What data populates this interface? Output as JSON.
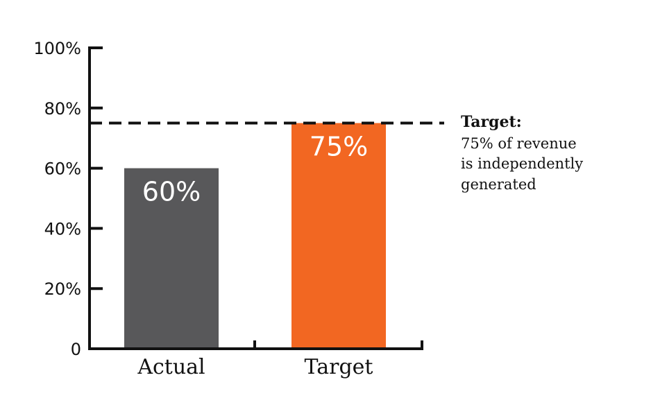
{
  "chart_data": {
    "type": "bar",
    "categories": [
      "Actual",
      "Target"
    ],
    "values": [
      60,
      75
    ],
    "value_labels": [
      "60%",
      "75%"
    ],
    "bar_colors": [
      "#58585a",
      "#f26722"
    ],
    "ylim": [
      0,
      100
    ],
    "y_ticks": [
      0,
      20,
      40,
      60,
      80,
      100
    ],
    "y_tick_labels": [
      "0",
      "20%",
      "40%",
      "60%",
      "80%",
      "100%"
    ],
    "reference_line": {
      "value": 75,
      "style": "dashed",
      "color": "#111111"
    },
    "annotation": {
      "title": "Target:",
      "lines": [
        "75% of revenue",
        "is independently",
        "generated"
      ]
    },
    "title": "",
    "xlabel": "",
    "ylabel": "",
    "grid": false,
    "legend": "none"
  }
}
